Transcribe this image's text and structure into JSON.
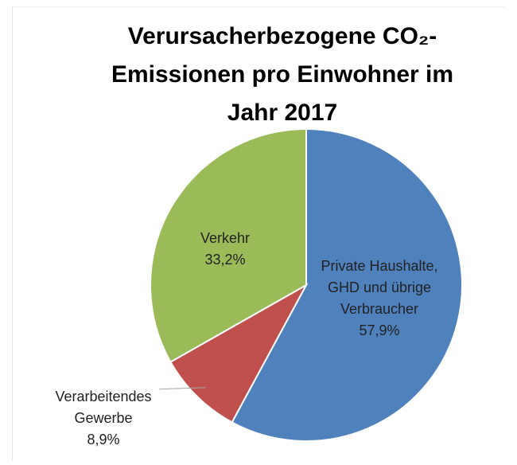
{
  "chart_data": {
    "type": "pie",
    "title": "Verursacherbezogene CO₂-Emissionen pro Einwohner im Jahr 2017",
    "categories": [
      "Private Haushalte, GHD und übrige Verbraucher",
      "Verarbeitendes Gewerbe",
      "Verkehr"
    ],
    "values": [
      57.9,
      8.9,
      33.2
    ],
    "value_labels": [
      "57,9%",
      "8,9%",
      "33,2%"
    ],
    "colors": [
      "#4f81bd",
      "#c0504d",
      "#9bbb59"
    ]
  }
}
